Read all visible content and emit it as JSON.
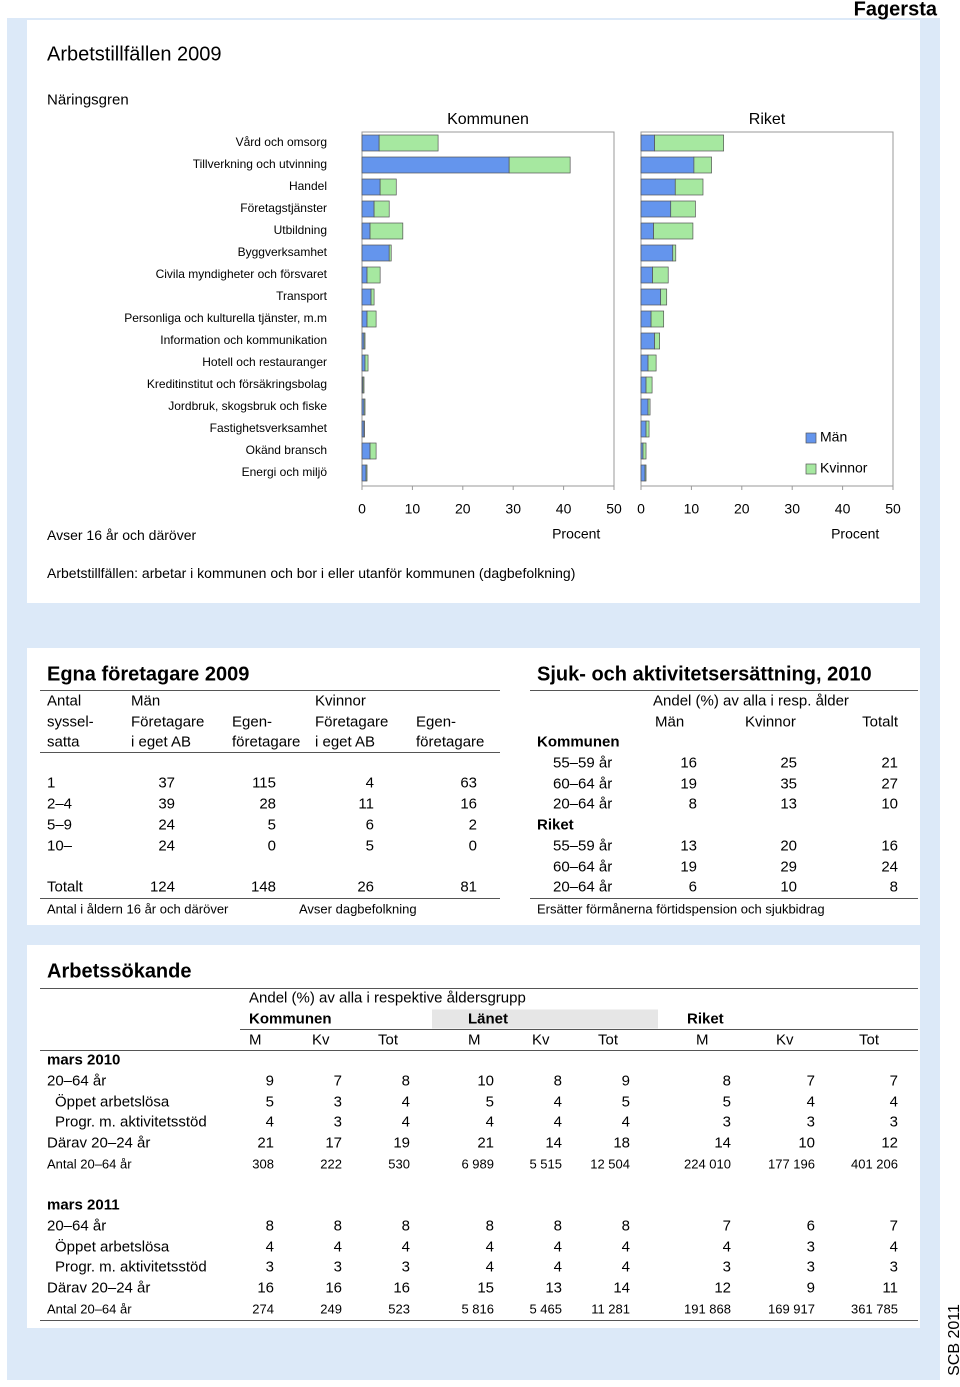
{
  "page_title": "Fagersta",
  "footer": "SCB 2011",
  "chart_data": {
    "type": "bar",
    "orientation": "horizontal",
    "stacked": true,
    "title": "Arbetstillfällen 2009",
    "category_label": "Näringsgren",
    "note": "Avser 16 år och däröver",
    "caption": "Arbetstillfällen: arbetar i kommunen och bor i eller utanför kommunen (dagbefolkning)",
    "categories": [
      "Vård och omsorg",
      "Tillverkning och utvinning",
      "Handel",
      "Företagstjänster",
      "Utbildning",
      "Byggverksamhet",
      "Civila myndigheter och försvaret",
      "Transport",
      "Personliga och kulturella tjänster, m.m",
      "Information och kommunikation",
      "Hotell och restauranger",
      "Kreditinstitut och försäkringsbolag",
      "Jordbruk, skogsbruk och fiske",
      "Fastighetsverksamhet",
      "Okänd bransch",
      "Energi och miljö"
    ],
    "legend_position": "right",
    "series": [
      {
        "name": "Män",
        "color": "#6495ed"
      },
      {
        "name": "Kvinnor",
        "color": "#a6e8a0"
      }
    ],
    "panels": [
      {
        "title": "Kommunen",
        "xlabel": "Procent",
        "xlim": [
          0,
          50
        ],
        "xticks": [
          0,
          10,
          20,
          30,
          40,
          50
        ],
        "values": [
          [
            3.4,
            29.2,
            3.6,
            2.4,
            1.6,
            5.4,
            1.0,
            1.8,
            1.0,
            0.4,
            0.6,
            0.2,
            0.4,
            0.4,
            1.6,
            0.8
          ],
          [
            11.7,
            12.1,
            3.2,
            3.0,
            6.5,
            0.4,
            2.6,
            0.6,
            1.8,
            0.2,
            0.6,
            0.2,
            0.2,
            0.1,
            1.2,
            0.2
          ]
        ]
      },
      {
        "title": "Riket",
        "xlabel": "Procent",
        "xlim": [
          0,
          50
        ],
        "xticks": [
          0,
          10,
          20,
          30,
          40,
          50
        ],
        "values": [
          [
            2.7,
            10.5,
            6.8,
            5.9,
            2.5,
            6.3,
            2.3,
            3.9,
            2.0,
            2.7,
            1.4,
            1.0,
            1.4,
            1.0,
            0.4,
            0.8
          ],
          [
            13.7,
            3.5,
            5.5,
            4.9,
            7.8,
            0.6,
            3.1,
            1.2,
            2.5,
            1.0,
            1.6,
            1.2,
            0.4,
            0.6,
            0.6,
            0.2
          ]
        ]
      }
    ]
  },
  "egna_foretagare": {
    "title": "Egna företagare 2009",
    "header": [
      [
        "Antal",
        "Män",
        "Kvinnor"
      ],
      [
        "syssel-",
        "Företagare",
        "Egen-",
        "Företagare",
        "Egen-"
      ],
      [
        "satta",
        "i eget AB",
        "företagare",
        "i eget AB",
        "företagare"
      ]
    ],
    "rows": [
      {
        "label": "1",
        "values": [
          37,
          115,
          4,
          63
        ]
      },
      {
        "label": "2–4",
        "values": [
          39,
          28,
          11,
          16
        ]
      },
      {
        "label": "5–9",
        "values": [
          24,
          5,
          6,
          2
        ]
      },
      {
        "label": "10–",
        "values": [
          24,
          0,
          5,
          0
        ]
      },
      {
        "label": "Totalt",
        "values": [
          124,
          148,
          26,
          81
        ]
      }
    ],
    "notes": [
      "Antal i åldern 16 år och däröver",
      "Avser dagbefolkning"
    ]
  },
  "sjuk": {
    "title": "Sjuk- och aktivitetsersättning, 2010",
    "header": "Andel (%) av alla i resp. ålder",
    "columns": [
      "Män",
      "Kvinnor",
      "Totalt"
    ],
    "groups": [
      {
        "label": "Kommunen",
        "rows": [
          {
            "label": "55–59 år",
            "values": [
              16,
              25,
              21
            ]
          },
          {
            "label": "60–64 år",
            "values": [
              19,
              35,
              27
            ]
          },
          {
            "label": "20–64 år",
            "values": [
              8,
              13,
              10
            ]
          }
        ]
      },
      {
        "label": "Riket",
        "rows": [
          {
            "label": "55–59 år",
            "values": [
              13,
              20,
              16
            ]
          },
          {
            "label": "60–64 år",
            "values": [
              19,
              29,
              24
            ]
          },
          {
            "label": "20–64 år",
            "values": [
              6,
              10,
              8
            ]
          }
        ]
      }
    ],
    "note": "Ersätter förmånerna förtidspension och sjukbidrag"
  },
  "arbetssokande": {
    "title": "Arbetssökande",
    "header": "Andel (%) av alla i respektive åldersgrupp",
    "groups": [
      "Kommunen",
      "Länet",
      "Riket"
    ],
    "columns": [
      "M",
      "Kv",
      "Tot",
      "M",
      "Kv",
      "Tot",
      "M",
      "Kv",
      "Tot"
    ],
    "periods": [
      {
        "label": "mars 2010",
        "rows": [
          {
            "label": "20–64 år",
            "values": [
              9,
              7,
              8,
              10,
              8,
              9,
              8,
              7,
              7
            ]
          },
          {
            "label": "Öppet arbetslösa",
            "values": [
              5,
              3,
              4,
              5,
              4,
              5,
              5,
              4,
              4
            ]
          },
          {
            "label": "Progr. m. aktivitetsstöd",
            "values": [
              4,
              3,
              4,
              4,
              4,
              4,
              3,
              3,
              3
            ]
          },
          {
            "label": "Därav 20–24 år",
            "values": [
              21,
              17,
              19,
              21,
              14,
              18,
              14,
              10,
              12
            ]
          },
          {
            "label": "Antal 20–64 år",
            "values": [
              308,
              222,
              530,
              "6 989",
              "5 515",
              "12 504",
              "224 010",
              "177 196",
              "401 206"
            ]
          }
        ]
      },
      {
        "label": "mars 2011",
        "rows": [
          {
            "label": "20–64 år",
            "values": [
              8,
              8,
              8,
              8,
              8,
              8,
              7,
              6,
              7
            ]
          },
          {
            "label": "Öppet arbetslösa",
            "values": [
              4,
              4,
              4,
              4,
              4,
              4,
              4,
              3,
              4
            ]
          },
          {
            "label": "Progr. m. aktivitetsstöd",
            "values": [
              3,
              3,
              3,
              4,
              4,
              4,
              3,
              3,
              3
            ]
          },
          {
            "label": "Därav 20–24 år",
            "values": [
              16,
              16,
              16,
              15,
              13,
              14,
              12,
              9,
              11
            ]
          },
          {
            "label": "Antal 20–64 år",
            "values": [
              274,
              249,
              523,
              "5 816",
              "5 465",
              "11 281",
              "191 868",
              "169 917",
              "361 785"
            ]
          }
        ]
      }
    ]
  }
}
